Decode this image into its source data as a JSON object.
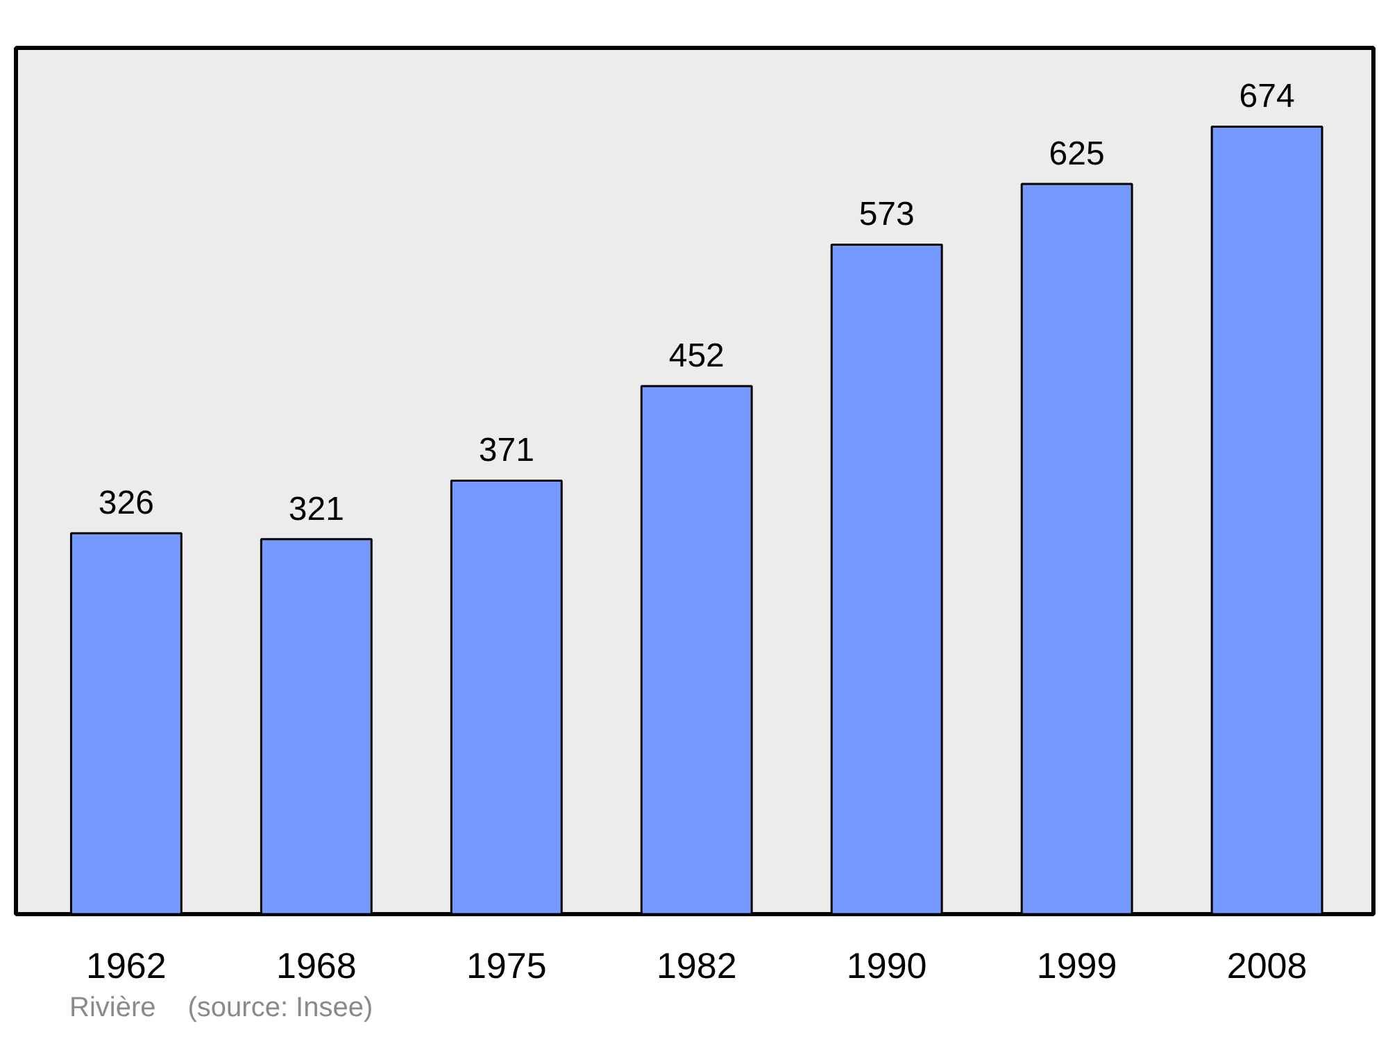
{
  "chart_data": {
    "type": "bar",
    "categories": [
      "1962",
      "1968",
      "1975",
      "1982",
      "1990",
      "1999",
      "2008"
    ],
    "values": [
      326,
      321,
      371,
      452,
      573,
      625,
      674
    ],
    "color": "#7499ff",
    "data_labels": true,
    "grid": false,
    "annotations": [
      "Rivière",
      "(source: Insee)"
    ]
  }
}
